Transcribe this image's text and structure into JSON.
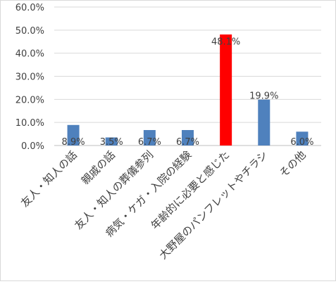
{
  "chart_data": {
    "type": "bar",
    "title": "",
    "xlabel": "",
    "ylabel": "",
    "ylim": [
      0,
      60
    ],
    "y_ticks": [
      "0.0%",
      "10.0%",
      "20.0%",
      "30.0%",
      "40.0%",
      "50.0%",
      "60.0%"
    ],
    "grid": true,
    "categories": [
      "友人・知人の話",
      "親戚の話",
      "友人・知人の葬儀参列",
      "病気・ケガ・入院の経験",
      "年齢的に必要と感じた",
      "大野屋のパンフレットやチラシ",
      "その他"
    ],
    "values": [
      8.9,
      3.5,
      6.7,
      6.7,
      48.1,
      19.9,
      6.0
    ],
    "data_labels": [
      "8.9%",
      "3.5%",
      "6.7%",
      "6.7%",
      "48.1%",
      "19.9%",
      "6.0%"
    ],
    "colors": {
      "default": "#4f81bd",
      "highlight": "#ff0000",
      "gridline": "#d9d9d9",
      "axis": "#bfbfbf"
    },
    "highlight_index": 4
  }
}
